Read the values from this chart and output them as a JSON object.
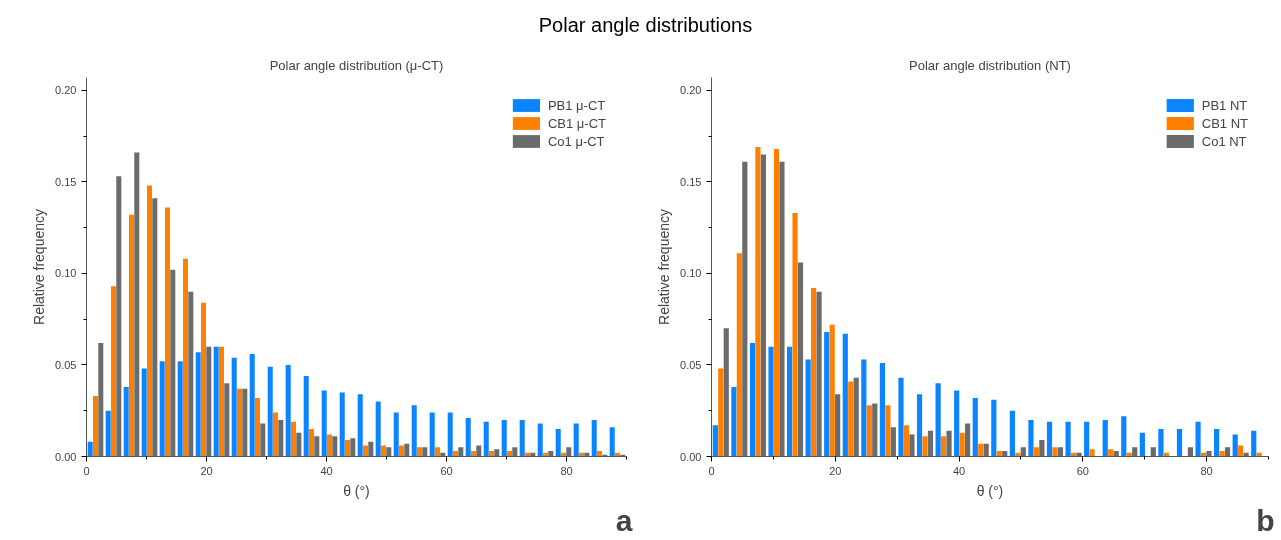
{
  "chart_data": [
    {
      "type": "bar",
      "title": "Polar angle distribution (μ-CT)",
      "xlabel": "θ (°)",
      "ylabel": "Relative frequency",
      "annotations": [
        "Polar angle distributions",
        "a"
      ],
      "x": [
        1.5,
        4.5,
        7.5,
        10.5,
        13.5,
        16.5,
        19.5,
        22.5,
        25.5,
        28.5,
        31.5,
        34.5,
        37.5,
        40.5,
        43.5,
        46.5,
        49.5,
        52.5,
        55.5,
        58.5,
        61.5,
        64.5,
        67.5,
        70.5,
        73.5,
        76.5,
        79.5,
        82.5,
        85.5,
        88.5
      ],
      "series": [
        {
          "name": "PB1 μ-CT",
          "color": "#0a84ff",
          "values": [
            0.008,
            0.025,
            0.038,
            0.048,
            0.052,
            0.052,
            0.057,
            0.06,
            0.054,
            0.056,
            0.049,
            0.05,
            0.044,
            0.036,
            0.035,
            0.034,
            0.03,
            0.024,
            0.028,
            0.024,
            0.024,
            0.021,
            0.019,
            0.02,
            0.02,
            0.018,
            0.015,
            0.018,
            0.02,
            0.016
          ]
        },
        {
          "name": "CB1 μ-CT",
          "color": "#ff8000",
          "values": [
            0.033,
            0.093,
            0.132,
            0.148,
            0.136,
            0.108,
            0.084,
            0.06,
            0.037,
            0.032,
            0.024,
            0.019,
            0.015,
            0.012,
            0.009,
            0.006,
            0.006,
            0.006,
            0.005,
            0.005,
            0.003,
            0.003,
            0.003,
            0.003,
            0.002,
            0.002,
            0.002,
            0.002,
            0.003,
            0.002
          ]
        },
        {
          "name": "Co1 μ-CT",
          "color": "#6b6b6b",
          "values": [
            0.062,
            0.153,
            0.166,
            0.141,
            0.102,
            0.09,
            0.06,
            0.04,
            0.037,
            0.018,
            0.02,
            0.013,
            0.011,
            0.011,
            0.01,
            0.008,
            0.005,
            0.007,
            0.005,
            0.002,
            0.005,
            0.006,
            0.004,
            0.005,
            0.002,
            0.003,
            0.005,
            0.002,
            0.001,
            0.001
          ]
        }
      ],
      "xlim": [
        0,
        90
      ],
      "ylim": [
        0,
        0.207
      ],
      "xticks": [
        0,
        {
          "value": 10,
          "label": null
        },
        20,
        {
          "value": 30,
          "label": null
        },
        40,
        {
          "value": 50,
          "label": null
        },
        60,
        {
          "value": 70,
          "label": null
        },
        80,
        {
          "value": 90,
          "label": null
        }
      ],
      "yticks": [
        {
          "value": 0,
          "label": "0.00"
        },
        {
          "value": 0.025,
          "label": null
        },
        {
          "value": 0.05,
          "label": "0.05"
        },
        {
          "value": 0.075,
          "label": null
        },
        {
          "value": 0.1,
          "label": "0.10"
        },
        {
          "value": 0.125,
          "label": null
        },
        {
          "value": 0.15,
          "label": "0.15"
        },
        {
          "value": 0.175,
          "label": null
        },
        {
          "value": 0.2,
          "label": "0.20"
        }
      ],
      "legend": "top right"
    },
    {
      "type": "bar",
      "title": "Polar angle distribution (NT)",
      "xlabel": "θ (°)",
      "ylabel": "Relative frequency",
      "annotations": [
        "b"
      ],
      "x": [
        1.5,
        4.5,
        7.5,
        10.5,
        13.5,
        16.5,
        19.5,
        22.5,
        25.5,
        28.5,
        31.5,
        34.5,
        37.5,
        40.5,
        43.5,
        46.5,
        49.5,
        52.5,
        55.5,
        58.5,
        61.5,
        64.5,
        67.5,
        70.5,
        73.5,
        76.5,
        79.5,
        82.5,
        85.5,
        88.5
      ],
      "series": [
        {
          "name": "PB1 NT",
          "color": "#0a84ff",
          "values": [
            0.017,
            0.038,
            0.062,
            0.06,
            0.06,
            0.053,
            0.068,
            0.067,
            0.053,
            0.051,
            0.043,
            0.034,
            0.04,
            0.036,
            0.032,
            0.031,
            0.025,
            0.02,
            0.019,
            0.019,
            0.019,
            0.02,
            0.022,
            0.013,
            0.015,
            0.015,
            0.019,
            0.015,
            0.012,
            0.014
          ]
        },
        {
          "name": "CB1 NT",
          "color": "#ff8000",
          "values": [
            0.048,
            0.111,
            0.169,
            0.168,
            0.133,
            0.092,
            0.072,
            0.041,
            0.028,
            0.028,
            0.017,
            0.011,
            0.011,
            0.013,
            0.007,
            0.003,
            0.002,
            0.005,
            0.005,
            0.002,
            0.004,
            0.004,
            0.002,
            null,
            0.002,
            null,
            0.002,
            0.003,
            0.006,
            0.002
          ]
        },
        {
          "name": "Co1 NT",
          "color": "#6b6b6b",
          "values": [
            0.07,
            0.161,
            0.165,
            0.161,
            0.106,
            0.09,
            0.034,
            0.043,
            0.029,
            0.016,
            0.012,
            0.014,
            0.014,
            0.018,
            0.007,
            0.003,
            0.005,
            0.009,
            0.005,
            0.002,
            0,
            0.003,
            0.005,
            0.005,
            0,
            0.005,
            0.003,
            0.005,
            0.002,
            0
          ]
        }
      ],
      "xlim": [
        0,
        90
      ],
      "ylim": [
        0,
        0.207
      ],
      "xticks": [
        0,
        {
          "value": 10,
          "label": null
        },
        20,
        {
          "value": 30,
          "label": null
        },
        40,
        {
          "value": 50,
          "label": null
        },
        60,
        {
          "value": 70,
          "label": null
        },
        80,
        {
          "value": 90,
          "label": null
        }
      ],
      "yticks": [
        {
          "value": 0,
          "label": "0.00"
        },
        {
          "value": 0.025,
          "label": null
        },
        {
          "value": 0.05,
          "label": "0.05"
        },
        {
          "value": 0.075,
          "label": null
        },
        {
          "value": 0.1,
          "label": "0.10"
        },
        {
          "value": 0.125,
          "label": null
        },
        {
          "value": 0.15,
          "label": "0.15"
        },
        {
          "value": 0.175,
          "label": null
        },
        {
          "value": 0.2,
          "label": "0.20"
        }
      ],
      "legend": "top right"
    }
  ]
}
